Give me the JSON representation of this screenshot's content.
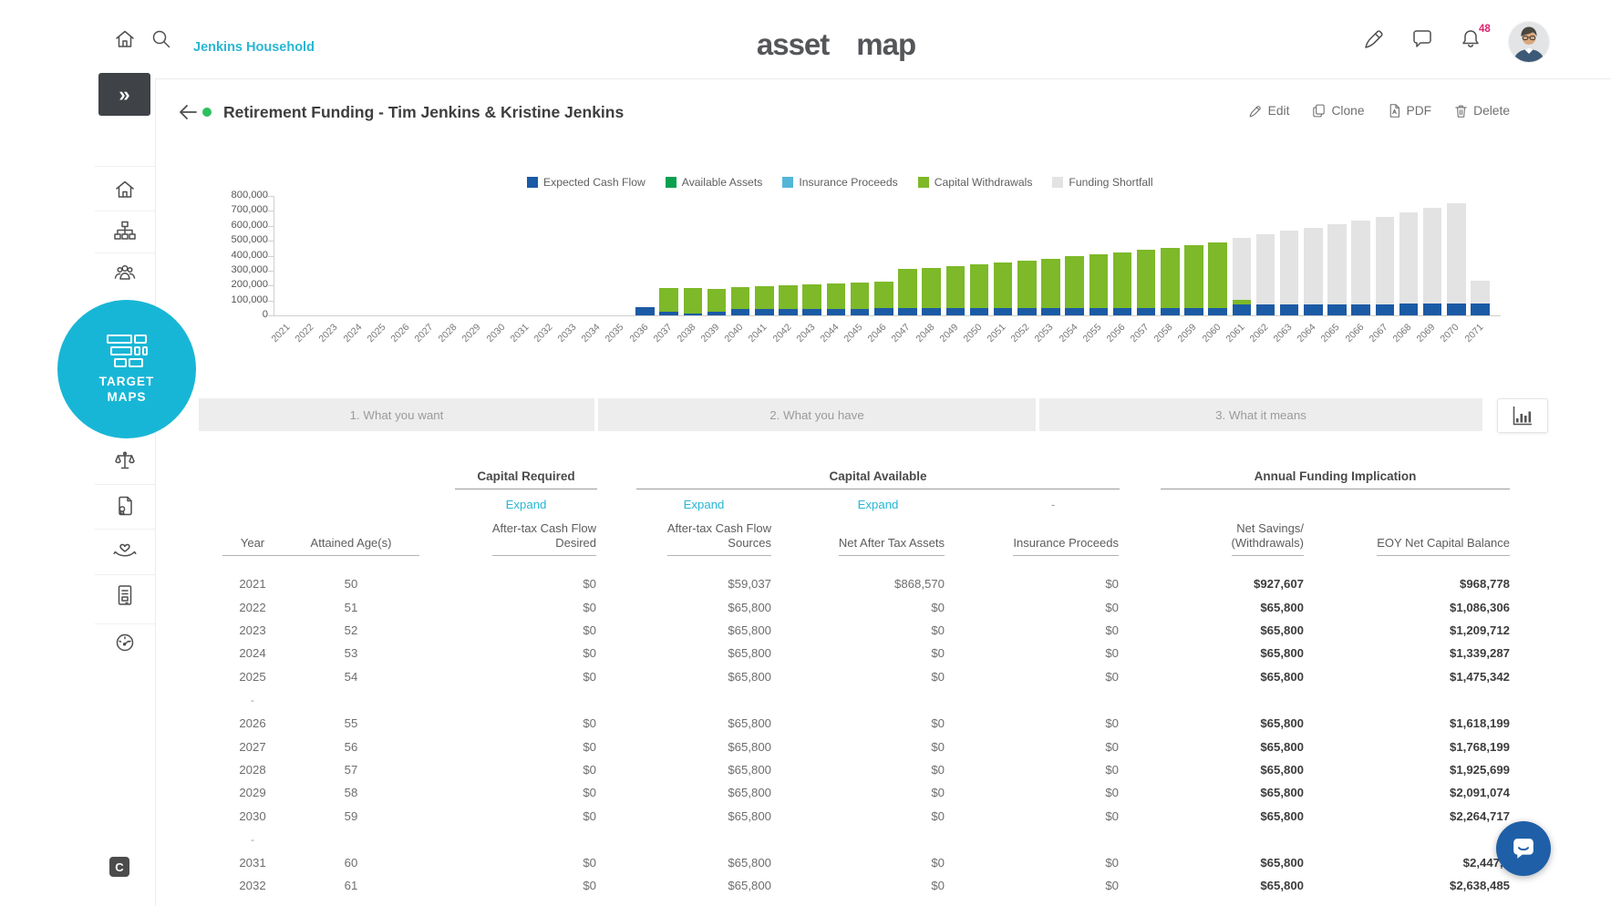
{
  "header": {
    "household": "Jenkins Household",
    "logo": {
      "part1": "asset",
      "part2": "map"
    },
    "notifications_count": "48"
  },
  "sidebar": {
    "collapse_glyph": "»",
    "target_line1": "TARGET",
    "target_line2": "MAPS",
    "c_badge": "C"
  },
  "page": {
    "title": "Retirement Funding - Tim Jenkins & Kristine Jenkins",
    "actions": {
      "edit": "Edit",
      "clone": "Clone",
      "pdf": "PDF",
      "delete": "Delete"
    }
  },
  "colors": {
    "accent_teal": "#29b6d3",
    "target_circle_cyan": "#18b6d6",
    "notification_pink": "#e0246e",
    "status_green": "#2dc05c",
    "chat_blue": "#1f5fa8"
  },
  "chart_data": {
    "type": "bar",
    "stacked": true,
    "title": "",
    "xlabel": "",
    "ylabel": "",
    "ylim": [
      0,
      800000
    ],
    "ytick_step": 100000,
    "grid": false,
    "legend_position": "top",
    "x": [
      2021,
      2022,
      2023,
      2024,
      2025,
      2026,
      2027,
      2028,
      2029,
      2030,
      2031,
      2032,
      2033,
      2034,
      2035,
      2036,
      2037,
      2038,
      2039,
      2040,
      2041,
      2042,
      2043,
      2044,
      2045,
      2046,
      2047,
      2048,
      2049,
      2050,
      2051,
      2052,
      2053,
      2054,
      2055,
      2056,
      2057,
      2058,
      2059,
      2060,
      2061,
      2062,
      2063,
      2064,
      2065,
      2066,
      2067,
      2068,
      2069,
      2070,
      2071
    ],
    "series": [
      {
        "name": "Expected Cash Flow",
        "color": "#1b5aa5",
        "values": [
          0,
          0,
          0,
          0,
          0,
          0,
          0,
          0,
          0,
          0,
          0,
          0,
          0,
          0,
          0,
          55000,
          25000,
          15000,
          25000,
          40000,
          42000,
          44000,
          45000,
          45000,
          45000,
          46000,
          47000,
          47000,
          48000,
          48000,
          48000,
          48000,
          48000,
          50000,
          50000,
          50000,
          50000,
          50000,
          52000,
          52000,
          72000,
          74000,
          74000,
          75000,
          75000,
          76000,
          76000,
          77000,
          78000,
          80000,
          78000
        ]
      },
      {
        "name": "Available Assets",
        "color": "#0ba04f",
        "values": [
          0,
          0,
          0,
          0,
          0,
          0,
          0,
          0,
          0,
          0,
          0,
          0,
          0,
          0,
          0,
          0,
          0,
          0,
          0,
          0,
          0,
          0,
          0,
          0,
          0,
          0,
          0,
          0,
          0,
          0,
          0,
          0,
          0,
          0,
          0,
          0,
          0,
          0,
          0,
          0,
          0,
          0,
          0,
          0,
          0,
          0,
          0,
          0,
          0,
          0,
          0
        ]
      },
      {
        "name": "Insurance Proceeds",
        "color": "#53b6d8",
        "values": [
          0,
          0,
          0,
          0,
          0,
          0,
          0,
          0,
          0,
          0,
          0,
          0,
          0,
          0,
          0,
          0,
          0,
          0,
          0,
          0,
          0,
          0,
          0,
          0,
          0,
          0,
          0,
          0,
          0,
          0,
          0,
          0,
          0,
          0,
          0,
          0,
          0,
          0,
          0,
          0,
          0,
          0,
          0,
          0,
          0,
          0,
          0,
          0,
          0,
          0,
          0
        ]
      },
      {
        "name": "Capital Withdrawals",
        "color": "#7db928",
        "values": [
          0,
          0,
          0,
          0,
          0,
          0,
          0,
          0,
          0,
          0,
          0,
          0,
          0,
          0,
          0,
          0,
          160000,
          167000,
          155000,
          148000,
          153000,
          157000,
          161000,
          166000,
          172000,
          180000,
          262000,
          272000,
          282000,
          293000,
          304000,
          317000,
          330000,
          344000,
          358000,
          373000,
          389000,
          404000,
          420000,
          438000,
          30000,
          0,
          0,
          0,
          0,
          0,
          0,
          0,
          0,
          0,
          0
        ]
      },
      {
        "name": "Funding Shortfall",
        "color": "#e3e3e3",
        "values": [
          0,
          0,
          0,
          0,
          0,
          0,
          0,
          0,
          0,
          0,
          0,
          0,
          0,
          0,
          0,
          0,
          0,
          0,
          0,
          0,
          0,
          0,
          0,
          0,
          0,
          0,
          0,
          0,
          0,
          0,
          0,
          0,
          0,
          0,
          0,
          0,
          0,
          0,
          0,
          0,
          418000,
          472000,
          492000,
          512000,
          537000,
          560000,
          586000,
          612000,
          642000,
          672000,
          152000
        ]
      }
    ]
  },
  "tabs": [
    {
      "label": "1. What you want"
    },
    {
      "label": "2. What you have"
    },
    {
      "label": "3. What it means"
    }
  ],
  "table": {
    "groups": [
      {
        "label": "Capital Required"
      },
      {
        "label": "Capital Available"
      },
      {
        "label": "Annual Funding Implication"
      }
    ],
    "expand_label": "Expand",
    "placeholder_dash": "-",
    "columns": [
      [
        "Year"
      ],
      [
        "Attained Age(s)"
      ],
      [
        "After-tax Cash Flow",
        "Desired"
      ],
      [
        "After-tax Cash Flow",
        "Sources"
      ],
      [
        "Net After Tax Assets"
      ],
      [
        "Insurance Proceeds"
      ],
      [
        "Net Savings/",
        "(Withdrawals)"
      ],
      [
        "EOY Net Capital Balance"
      ]
    ],
    "rows": [
      {
        "type": "data",
        "cells": [
          "2021",
          "50",
          "$0",
          "$59,037",
          "$868,570",
          "$0",
          "$927,607",
          "$968,778"
        ]
      },
      {
        "type": "data",
        "cells": [
          "2022",
          "51",
          "$0",
          "$65,800",
          "$0",
          "$0",
          "$65,800",
          "$1,086,306"
        ]
      },
      {
        "type": "data",
        "cells": [
          "2023",
          "52",
          "$0",
          "$65,800",
          "$0",
          "$0",
          "$65,800",
          "$1,209,712"
        ]
      },
      {
        "type": "data",
        "cells": [
          "2024",
          "53",
          "$0",
          "$65,800",
          "$0",
          "$0",
          "$65,800",
          "$1,339,287"
        ]
      },
      {
        "type": "data",
        "cells": [
          "2025",
          "54",
          "$0",
          "$65,800",
          "$0",
          "$0",
          "$65,800",
          "$1,475,342"
        ]
      },
      {
        "type": "sep"
      },
      {
        "type": "data",
        "cells": [
          "2026",
          "55",
          "$0",
          "$65,800",
          "$0",
          "$0",
          "$65,800",
          "$1,618,199"
        ]
      },
      {
        "type": "data",
        "cells": [
          "2027",
          "56",
          "$0",
          "$65,800",
          "$0",
          "$0",
          "$65,800",
          "$1,768,199"
        ]
      },
      {
        "type": "data",
        "cells": [
          "2028",
          "57",
          "$0",
          "$65,800",
          "$0",
          "$0",
          "$65,800",
          "$1,925,699"
        ]
      },
      {
        "type": "data",
        "cells": [
          "2029",
          "58",
          "$0",
          "$65,800",
          "$0",
          "$0",
          "$65,800",
          "$2,091,074"
        ]
      },
      {
        "type": "data",
        "cells": [
          "2030",
          "59",
          "$0",
          "$65,800",
          "$0",
          "$0",
          "$65,800",
          "$2,264,717"
        ]
      },
      {
        "type": "sep"
      },
      {
        "type": "data",
        "cells": [
          "2031",
          "60",
          "$0",
          "$65,800",
          "$0",
          "$0",
          "$65,800",
          "$2,447,0"
        ]
      },
      {
        "type": "data",
        "cells": [
          "2032",
          "61",
          "$0",
          "$65,800",
          "$0",
          "$0",
          "$65,800",
          "$2,638,485"
        ]
      }
    ]
  }
}
